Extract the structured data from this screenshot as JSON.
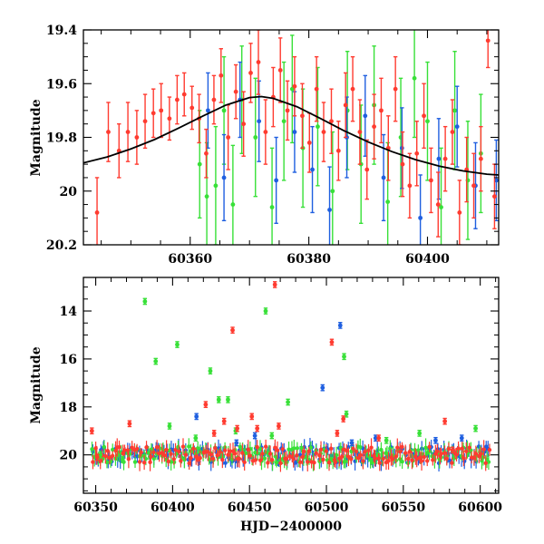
{
  "chart_data": [
    {
      "type": "scatter",
      "panel": "top",
      "xlabel": "",
      "ylabel": "Magnitude",
      "xlim": [
        60342,
        60412
      ],
      "ylim": [
        20.2,
        19.4
      ],
      "y_inverted": true,
      "x_ticks": [
        60360,
        60380,
        60400
      ],
      "y_ticks": [
        19.4,
        19.6,
        19.8,
        20,
        20.2
      ],
      "x_tick_labels": [
        "60360",
        "60380",
        "60400"
      ],
      "y_tick_labels": [
        "19.4",
        "19.6",
        "19.8",
        "20",
        "20.2"
      ],
      "grid": false,
      "colors": {
        "red": "#ff3b30",
        "green": "#38e038",
        "blue": "#1f5fe0",
        "model": "#000000"
      },
      "model_curve": {
        "color": "#000000",
        "x": [
          60342,
          60346,
          60350,
          60354,
          60358,
          60362,
          60366,
          60370,
          60372,
          60374,
          60378,
          60382,
          60386,
          60390,
          60394,
          60398,
          60402,
          60406,
          60410,
          60412
        ],
        "y": [
          19.895,
          19.873,
          19.843,
          19.808,
          19.766,
          19.722,
          19.68,
          19.652,
          19.648,
          19.655,
          19.686,
          19.73,
          19.776,
          19.817,
          19.853,
          19.883,
          19.907,
          19.925,
          19.937,
          19.94
        ]
      },
      "series": [
        {
          "color": "red",
          "points": [
            [
              60344.3,
              20.08,
              0.13
            ],
            [
              60346.2,
              19.78,
              0.11
            ],
            [
              60348.0,
              19.85,
              0.1
            ],
            [
              60349.5,
              19.78,
              0.11
            ],
            [
              60351.0,
              19.8,
              0.1
            ],
            [
              60352.4,
              19.74,
              0.1
            ],
            [
              60353.8,
              19.71,
              0.09
            ],
            [
              60355.1,
              19.7,
              0.1
            ],
            [
              60356.5,
              19.73,
              0.08
            ],
            [
              60357.8,
              19.66,
              0.09
            ],
            [
              60359.0,
              19.64,
              0.08
            ],
            [
              60360.3,
              19.69,
              0.08
            ],
            [
              60361.5,
              19.73,
              0.09
            ],
            [
              60362.7,
              19.86,
              0.09
            ],
            [
              60364.0,
              19.66,
              0.09
            ],
            [
              60365.2,
              19.57,
              0.1
            ],
            [
              60366.4,
              19.8,
              0.12
            ],
            [
              60367.7,
              19.63,
              0.1
            ],
            [
              60369.0,
              19.75,
              0.12
            ],
            [
              60370.2,
              19.56,
              0.11
            ],
            [
              60371.5,
              19.52,
              0.12
            ],
            [
              60372.7,
              19.78,
              0.12
            ],
            [
              60374.0,
              19.65,
              0.11
            ],
            [
              60375.2,
              19.55,
              0.12
            ],
            [
              60376.4,
              19.7,
              0.11
            ],
            [
              60377.6,
              19.61,
              0.11
            ],
            [
              60378.9,
              19.72,
              0.12
            ],
            [
              60380.1,
              19.82,
              0.11
            ],
            [
              60381.3,
              19.62,
              0.12
            ],
            [
              60382.5,
              19.78,
              0.11
            ],
            [
              60383.8,
              19.74,
              0.12
            ],
            [
              60385.0,
              19.85,
              0.11
            ],
            [
              60386.2,
              19.68,
              0.12
            ],
            [
              60387.4,
              19.62,
              0.12
            ],
            [
              60388.6,
              19.78,
              0.12
            ],
            [
              60389.8,
              19.92,
              0.11
            ],
            [
              60391.0,
              19.76,
              0.12
            ],
            [
              60392.2,
              19.7,
              0.12
            ],
            [
              60393.4,
              19.84,
              0.12
            ],
            [
              60394.6,
              19.62,
              0.12
            ],
            [
              60395.8,
              19.9,
              0.12
            ],
            [
              60397.0,
              19.98,
              0.12
            ],
            [
              60398.2,
              19.86,
              0.12
            ],
            [
              60399.4,
              19.72,
              0.12
            ],
            [
              60400.6,
              19.96,
              0.12
            ],
            [
              60401.8,
              20.05,
              0.12
            ],
            [
              60403.0,
              19.88,
              0.12
            ],
            [
              60404.2,
              19.78,
              0.12
            ],
            [
              60405.4,
              20.08,
              0.12
            ],
            [
              60406.6,
              19.92,
              0.12
            ],
            [
              60407.8,
              19.98,
              0.12
            ],
            [
              60409.0,
              19.88,
              0.12
            ],
            [
              60410.2,
              19.44,
              0.1
            ],
            [
              60411.3,
              20.02,
              0.12
            ]
          ]
        },
        {
          "color": "green",
          "points": [
            [
              60361.6,
              19.9,
              0.2
            ],
            [
              60362.8,
              20.02,
              0.2
            ],
            [
              60364.3,
              19.98,
              0.22
            ],
            [
              60365.7,
              19.7,
              0.2
            ],
            [
              60367.2,
              20.05,
              0.22
            ],
            [
              60368.7,
              19.66,
              0.2
            ],
            [
              60371.0,
              19.8,
              0.22
            ],
            [
              60373.8,
              20.06,
              0.22
            ],
            [
              60375.8,
              19.74,
              0.22
            ],
            [
              60377.2,
              19.62,
              0.2
            ],
            [
              60379.0,
              19.84,
              0.22
            ],
            [
              60381.5,
              19.76,
              0.22
            ],
            [
              60384.0,
              20.0,
              0.22
            ],
            [
              60386.5,
              19.7,
              0.22
            ],
            [
              60388.8,
              19.9,
              0.22
            ],
            [
              60391.0,
              19.68,
              0.22
            ],
            [
              60393.3,
              20.04,
              0.22
            ],
            [
              60395.5,
              19.8,
              0.22
            ],
            [
              60397.8,
              19.58,
              0.22
            ],
            [
              60400.0,
              19.74,
              0.22
            ],
            [
              60402.3,
              20.06,
              0.22
            ],
            [
              60404.6,
              19.7,
              0.22
            ],
            [
              60406.8,
              19.96,
              0.22
            ],
            [
              60409.0,
              19.86,
              0.22
            ]
          ]
        },
        {
          "color": "blue",
          "points": [
            [
              60363.0,
              19.7,
              0.14
            ],
            [
              60365.7,
              19.95,
              0.16
            ],
            [
              60368.4,
              19.66,
              0.14
            ],
            [
              60371.6,
              19.74,
              0.15
            ],
            [
              60374.5,
              19.96,
              0.16
            ],
            [
              60377.6,
              19.78,
              0.15
            ],
            [
              60380.6,
              19.92,
              0.16
            ],
            [
              60383.5,
              20.07,
              0.16
            ],
            [
              60386.4,
              19.8,
              0.15
            ],
            [
              60389.5,
              19.72,
              0.15
            ],
            [
              60392.6,
              19.95,
              0.16
            ],
            [
              60395.7,
              19.84,
              0.15
            ],
            [
              60398.8,
              20.1,
              0.16
            ],
            [
              60401.9,
              19.88,
              0.15
            ],
            [
              60405.0,
              19.76,
              0.15
            ],
            [
              60408.1,
              19.98,
              0.16
            ],
            [
              60411.6,
              19.96,
              0.15
            ]
          ]
        }
      ]
    },
    {
      "type": "scatter",
      "panel": "bottom",
      "xlabel": "HJD−2400000",
      "ylabel": "Magnitude",
      "xlim": [
        60342,
        60612
      ],
      "ylim": [
        21.6,
        12.6
      ],
      "y_inverted": true,
      "x_ticks": [
        60350,
        60400,
        60450,
        60500,
        60550,
        60600
      ],
      "y_ticks": [
        14,
        16,
        18,
        20
      ],
      "x_tick_labels": [
        "60350",
        "60400",
        "60450",
        "60500",
        "60550",
        "60600"
      ],
      "y_tick_labels": [
        "14",
        "16",
        "18",
        "20"
      ],
      "grid": false,
      "colors": {
        "red": "#ff3b30",
        "green": "#38e038",
        "blue": "#1f5fe0"
      },
      "baseline_band": {
        "x_range": [
          60348,
          60606
        ],
        "mean_mag": 20.0,
        "scatter_mag": 0.35,
        "colors": [
          "blue",
          "green",
          "red"
        ]
      },
      "series": [
        {
          "color": "red",
          "points": [
            [
              60347.5,
              19.0
            ],
            [
              60351.0,
              20.1
            ],
            [
              60372.0,
              18.7
            ],
            [
              60421.5,
              17.9
            ],
            [
              60427.0,
              19.1
            ],
            [
              60433.5,
              18.6
            ],
            [
              60439.0,
              14.8
            ],
            [
              60442.0,
              18.9
            ],
            [
              60451.5,
              18.4
            ],
            [
              60455.0,
              18.9
            ],
            [
              60466.5,
              12.9
            ],
            [
              60469.0,
              18.8
            ],
            [
              60503.5,
              15.3
            ],
            [
              60507.0,
              19.1
            ],
            [
              60511.0,
              18.5
            ],
            [
              60534.0,
              19.3
            ],
            [
              60577.0,
              18.6
            ],
            [
              60582.0,
              19.8
            ]
          ]
        },
        {
          "color": "green",
          "points": [
            [
              60353.0,
              20.0
            ],
            [
              60367.5,
              20.2
            ],
            [
              60382.0,
              13.6
            ],
            [
              60389.0,
              16.1
            ],
            [
              60398.0,
              18.8
            ],
            [
              60403.0,
              15.4
            ],
            [
              60415.0,
              19.3
            ],
            [
              60424.5,
              16.5
            ],
            [
              60430.0,
              17.7
            ],
            [
              60436.0,
              17.7
            ],
            [
              60441.0,
              19.0
            ],
            [
              60460.5,
              14.0
            ],
            [
              60464.5,
              19.2
            ],
            [
              60475.0,
              17.8
            ],
            [
              60511.5,
              15.9
            ],
            [
              60513.0,
              18.3
            ],
            [
              60539.0,
              19.4
            ],
            [
              60560.5,
              19.1
            ],
            [
              60597.0,
              18.9
            ]
          ]
        },
        {
          "color": "blue",
          "points": [
            [
              60415.5,
              18.4
            ],
            [
              60441.5,
              19.5
            ],
            [
              60453.5,
              19.2
            ],
            [
              60497.5,
              17.2
            ],
            [
              60509.0,
              14.6
            ],
            [
              60516.5,
              19.5
            ],
            [
              60532.0,
              19.3
            ],
            [
              60571.0,
              19.4
            ],
            [
              60588.0,
              19.3
            ]
          ]
        }
      ]
    }
  ]
}
